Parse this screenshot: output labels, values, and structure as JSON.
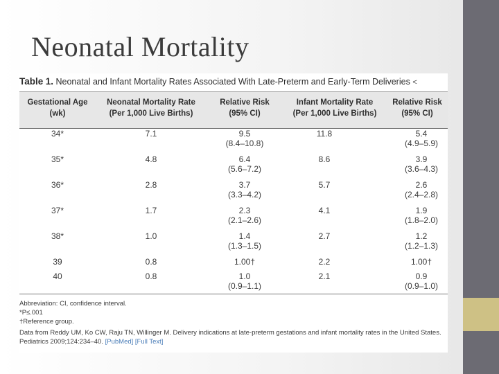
{
  "slide": {
    "title": "Neonatal Mortality"
  },
  "table": {
    "caption_prefix": "Table",
    "caption_number": "1.",
    "caption_text": "Neonatal and Infant Mortality Rates Associated With Late-Preterm and Early-Term Deliveries",
    "caption_arrow": "<",
    "headers": [
      [
        "Gestational Age",
        "(wk)"
      ],
      [
        "Neonatal Mortality Rate",
        "(Per 1,000 Live Births)"
      ],
      [
        "Relative Risk",
        "(95% CI)"
      ],
      [
        "Infant Mortality Rate",
        "(Per 1,000 Live Births)"
      ],
      [
        "Relative Risk",
        "(95% CI)"
      ]
    ],
    "rows": [
      {
        "age": "34*",
        "nmr": "7.1",
        "rr1": "9.5",
        "rr1_ci": "(8.4–10.8)",
        "imr": "11.8",
        "rr2": "5.4",
        "rr2_ci": "(4.9–5.9)"
      },
      {
        "age": "35*",
        "nmr": "4.8",
        "rr1": "6.4",
        "rr1_ci": "(5.6–7.2)",
        "imr": "8.6",
        "rr2": "3.9",
        "rr2_ci": "(3.6–4.3)"
      },
      {
        "age": "36*",
        "nmr": "2.8",
        "rr1": "3.7",
        "rr1_ci": "(3.3–4.2)",
        "imr": "5.7",
        "rr2": "2.6",
        "rr2_ci": "(2.4–2.8)"
      },
      {
        "age": "37*",
        "nmr": "1.7",
        "rr1": "2.3",
        "rr1_ci": "(2.1–2.6)",
        "imr": "4.1",
        "rr2": "1.9",
        "rr2_ci": "(1.8–2.0)"
      },
      {
        "age": "38*",
        "nmr": "1.0",
        "rr1": "1.4",
        "rr1_ci": "(1.3–1.5)",
        "imr": "2.7",
        "rr2": "1.2",
        "rr2_ci": "(1.2–1.3)"
      },
      {
        "age": "39",
        "nmr": "0.8",
        "rr1": "1.00†",
        "rr1_ci": "",
        "imr": "2.2",
        "rr2": "1.00†",
        "rr2_ci": ""
      },
      {
        "age": "40",
        "nmr": "0.8",
        "rr1": "1.0",
        "rr1_ci": "(0.9–1.1)",
        "imr": "2.1",
        "rr2": "0.9",
        "rr2_ci": "(0.9–1.0)"
      }
    ],
    "notes": {
      "abbreviation": "Abbreviation: CI, confidence interval.",
      "significance": "*P≤.001",
      "reference": "†Reference group.",
      "source": "Data from Reddy UM, Ko CW, Raju TN, Willinger M. Delivery indications at late-preterm gestations and infant mortality rates in the United States.",
      "citation": "Pediatrics 2009;124:234–40.",
      "pubmed": "[PubMed]",
      "fulltext": "[Full Text]"
    }
  },
  "colors": {
    "sidebar_gray": "#6c6b73",
    "sidebar_gold": "#cec185",
    "link": "#4a7db8"
  }
}
